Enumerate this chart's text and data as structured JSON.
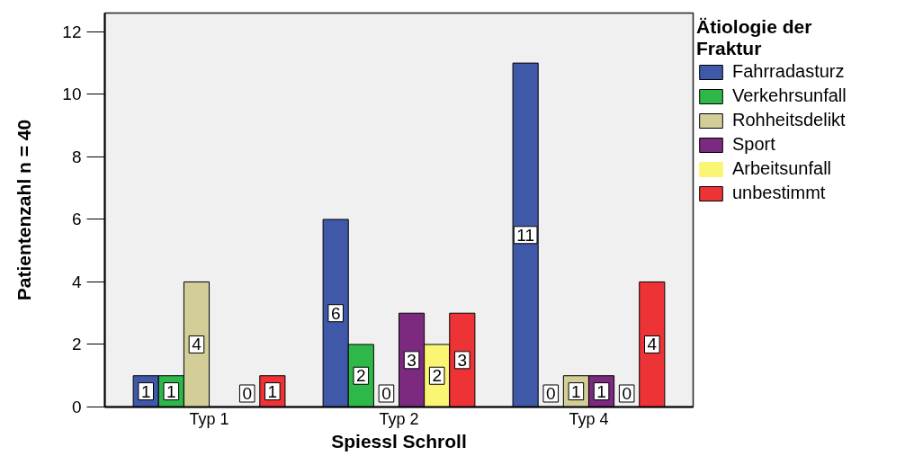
{
  "chart_data": {
    "type": "bar",
    "xlabel": "Spiessl Schroll",
    "ylabel": "Patientenzahl n = 40",
    "legend_title": "Ätiologie der Fraktur",
    "categories": [
      "Typ 1",
      "Typ 2",
      "Typ 4"
    ],
    "series": [
      {
        "name": "Fahrradasturz",
        "color": "#3f58a8",
        "values": [
          1,
          6,
          11
        ]
      },
      {
        "name": "Verkehrsunfall",
        "color": "#2eb84a",
        "values": [
          1,
          2,
          0
        ]
      },
      {
        "name": "Rohheitsdelikt",
        "color": "#d3ce97",
        "values": [
          4,
          0,
          1
        ]
      },
      {
        "name": "Sport",
        "color": "#7b2a80",
        "values": [
          null,
          3,
          1
        ]
      },
      {
        "name": "Arbeitsunfall",
        "color": "#fbf574",
        "values": [
          0,
          2,
          0
        ]
      },
      {
        "name": "unbestimmt",
        "color": "#ee3337",
        "values": [
          1,
          3,
          4
        ]
      }
    ],
    "ylim": [
      0,
      12.6
    ],
    "yticks": [
      0,
      2,
      4,
      6,
      8,
      10,
      12
    ],
    "grid": false,
    "legend": "right",
    "data_labels": true
  }
}
